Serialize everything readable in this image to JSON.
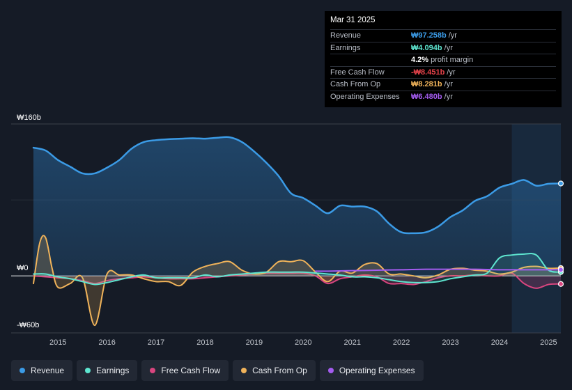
{
  "tooltip": {
    "date": "Mar 31 2025",
    "rows": [
      {
        "label": "Revenue",
        "value": "₩97.258b",
        "unit": "/yr",
        "color": "#3b9be6"
      },
      {
        "label": "Earnings",
        "value": "₩4.094b",
        "unit": "/yr",
        "color": "#5ee6d0"
      },
      {
        "label": "",
        "value": "4.2%",
        "unit": "profit margin",
        "color": "#ffffff"
      },
      {
        "label": "Free Cash Flow",
        "value": "-₩8.451b",
        "unit": "/yr",
        "color": "#e8434b"
      },
      {
        "label": "Cash From Op",
        "value": "₩8.281b",
        "unit": "/yr",
        "color": "#f0b35a"
      },
      {
        "label": "Operating Expenses",
        "value": "₩6.480b",
        "unit": "/yr",
        "color": "#a45cf0"
      }
    ]
  },
  "legend": [
    {
      "label": "Revenue",
      "color": "#3b9be6"
    },
    {
      "label": "Earnings",
      "color": "#5ee6d0"
    },
    {
      "label": "Free Cash Flow",
      "color": "#d9457f"
    },
    {
      "label": "Cash From Op",
      "color": "#f0b35a"
    },
    {
      "label": "Operating Expenses",
      "color": "#a45cf0"
    }
  ],
  "chart_data": {
    "type": "area",
    "title": "",
    "xlabel": "",
    "ylabel": "",
    "currency": "KRW",
    "ylim": [
      -60,
      160
    ],
    "xlim": [
      2014.5,
      2025.25
    ],
    "y_tick_labels": [
      {
        "value": 160,
        "label": "₩160b"
      },
      {
        "value": 0,
        "label": "₩0"
      },
      {
        "value": -60,
        "label": "-₩60b"
      }
    ],
    "x_tick_labels": [
      "2015",
      "2016",
      "2017",
      "2018",
      "2019",
      "2020",
      "2021",
      "2022",
      "2023",
      "2024",
      "2025"
    ],
    "x_ticks": [
      2015,
      2016,
      2017,
      2018,
      2019,
      2020,
      2021,
      2022,
      2023,
      2024,
      2025
    ],
    "highlight_start": 2024.25,
    "series": [
      {
        "name": "Revenue",
        "color": "#3b9be6",
        "fill": true,
        "x": [
          2014.5,
          2014.75,
          2015.0,
          2015.25,
          2015.5,
          2015.75,
          2016.0,
          2016.25,
          2016.5,
          2016.75,
          2017.0,
          2017.25,
          2017.5,
          2017.75,
          2018.0,
          2018.25,
          2018.5,
          2018.75,
          2019.0,
          2019.25,
          2019.5,
          2019.75,
          2020.0,
          2020.25,
          2020.5,
          2020.75,
          2021.0,
          2021.25,
          2021.5,
          2021.75,
          2022.0,
          2022.25,
          2022.5,
          2022.75,
          2023.0,
          2023.25,
          2023.5,
          2023.75,
          2024.0,
          2024.25,
          2024.5,
          2024.75,
          2025.0,
          2025.25
        ],
        "values": [
          135,
          132,
          122,
          115,
          108,
          108,
          114,
          122,
          134,
          141,
          143,
          144,
          144.5,
          145,
          144.5,
          145.5,
          146,
          141,
          131,
          119,
          105,
          87,
          82,
          74,
          66,
          74,
          73,
          73,
          68,
          55,
          46,
          45,
          46,
          52,
          62,
          69,
          79,
          84,
          93,
          97,
          101,
          95,
          97,
          97.3
        ]
      },
      {
        "name": "Earnings",
        "color": "#5ee6d0",
        "fill": true,
        "x": [
          2014.5,
          2014.75,
          2015.0,
          2015.25,
          2015.5,
          2015.75,
          2016.0,
          2016.25,
          2016.5,
          2016.75,
          2017.0,
          2017.25,
          2017.5,
          2017.75,
          2018.0,
          2018.25,
          2018.5,
          2018.75,
          2019.0,
          2019.25,
          2019.5,
          2019.75,
          2020.0,
          2020.25,
          2020.5,
          2020.75,
          2021.0,
          2021.25,
          2021.5,
          2021.75,
          2022.0,
          2022.25,
          2022.5,
          2022.75,
          2023.0,
          2023.25,
          2023.5,
          2023.75,
          2024.0,
          2024.25,
          2024.5,
          2024.75,
          2025.0,
          2025.25
        ],
        "values": [
          2,
          2,
          -1,
          -3,
          -6,
          -9,
          -7,
          -4,
          -1,
          1,
          -2,
          -2,
          -2,
          -2,
          1,
          -1,
          1,
          2,
          3,
          4,
          4,
          4,
          4,
          3,
          2,
          1,
          -1,
          -1,
          -2,
          -4,
          -6,
          -7,
          -7,
          -6,
          -3,
          -1,
          1,
          3,
          19,
          22,
          23,
          22,
          6,
          4.1
        ]
      },
      {
        "name": "Free Cash Flow",
        "color": "#d9457f",
        "fill": true,
        "x": [
          2014.5,
          2014.75,
          2015.0,
          2015.25,
          2015.5,
          2015.75,
          2016.0,
          2016.25,
          2016.5,
          2016.75,
          2017.0,
          2017.25,
          2017.5,
          2017.75,
          2018.0,
          2018.25,
          2018.5,
          2018.75,
          2019.0,
          2019.25,
          2019.5,
          2019.75,
          2020.0,
          2020.25,
          2020.5,
          2020.75,
          2021.0,
          2021.25,
          2021.5,
          2021.75,
          2022.0,
          2022.25,
          2022.5,
          2022.75,
          2023.0,
          2023.25,
          2023.5,
          2023.75,
          2024.0,
          2024.25,
          2024.5,
          2024.75,
          2025.0,
          2025.25
        ],
        "values": [
          0,
          -1,
          -2,
          -3,
          -5,
          -8,
          -5,
          -3,
          -2,
          -1,
          -2,
          -3,
          -3,
          -3,
          -2,
          -1,
          0,
          1,
          2,
          3,
          3,
          3,
          3,
          0,
          -8,
          -3,
          -1,
          1,
          -1,
          -8,
          -8,
          -9,
          -6,
          -2,
          0,
          0,
          1,
          0,
          0,
          3,
          -8,
          -13,
          -9,
          -8.5
        ]
      },
      {
        "name": "Cash From Op",
        "color": "#f0b35a",
        "fill": true,
        "x": [
          2014.5,
          2014.63,
          2014.75,
          2014.88,
          2015.0,
          2015.25,
          2015.5,
          2015.75,
          2016.0,
          2016.25,
          2016.5,
          2016.75,
          2017.0,
          2017.25,
          2017.5,
          2017.75,
          2018.0,
          2018.25,
          2018.5,
          2018.75,
          2019.0,
          2019.25,
          2019.5,
          2019.75,
          2020.0,
          2020.25,
          2020.5,
          2020.75,
          2021.0,
          2021.25,
          2021.5,
          2021.75,
          2022.0,
          2022.25,
          2022.5,
          2022.75,
          2023.0,
          2023.25,
          2023.5,
          2023.75,
          2024.0,
          2024.25,
          2024.5,
          2024.75,
          2025.0,
          2025.25
        ],
        "values": [
          -8,
          35,
          40,
          8,
          -12,
          -8,
          -2,
          -52,
          2,
          1,
          1,
          -3,
          -6,
          -6,
          -10,
          4,
          10,
          13,
          15,
          6,
          2,
          4,
          15,
          15,
          16,
          4,
          -6,
          5,
          3,
          12,
          13,
          2,
          2,
          0,
          -2,
          1,
          7,
          8,
          6,
          5,
          2,
          4,
          9,
          10,
          8,
          8.3
        ]
      },
      {
        "name": "Operating Expenses",
        "color": "#a45cf0",
        "fill": false,
        "x": [
          2020.25,
          2020.5,
          2021.0,
          2021.5,
          2022.0,
          2022.5,
          2023.0,
          2023.5,
          2024.0,
          2024.5,
          2025.0,
          2025.25
        ],
        "values": [
          5,
          5,
          5.5,
          6,
          6.5,
          7,
          7,
          7,
          6.5,
          6.5,
          6.5,
          6.5
        ]
      }
    ]
  }
}
